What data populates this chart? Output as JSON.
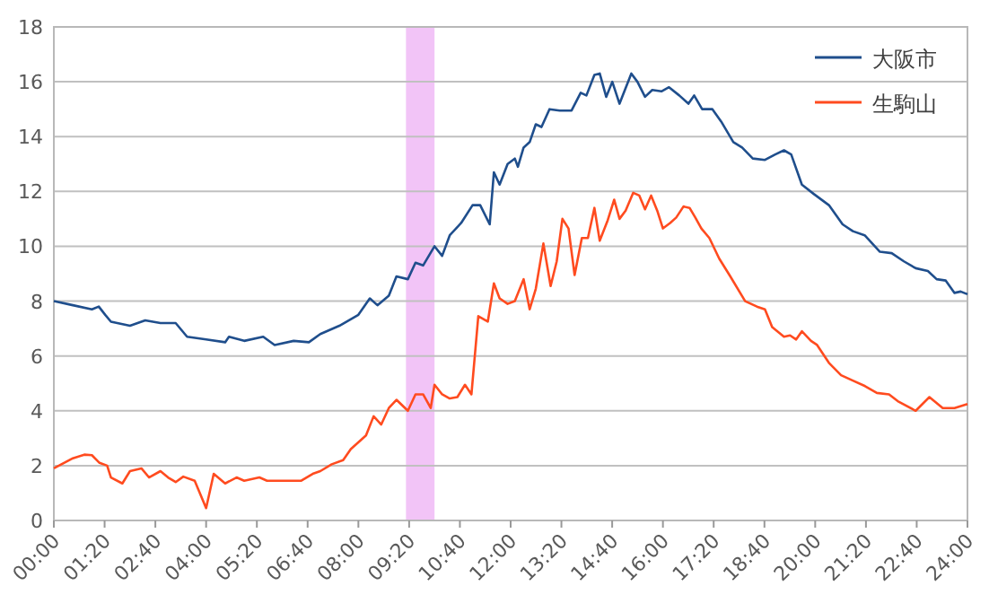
{
  "chart_data": {
    "type": "line",
    "legend": "top right",
    "grid": "y",
    "xlim": [
      0,
      24
    ],
    "ylim": [
      0,
      18
    ],
    "yticks": [
      0,
      2,
      4,
      6,
      8,
      10,
      12,
      14,
      16,
      18
    ],
    "xticks": [
      {
        "value": 0,
        "label": "00:00"
      },
      {
        "value": 1.3333,
        "label": "01:20"
      },
      {
        "value": 2.6667,
        "label": "02:40"
      },
      {
        "value": 4,
        "label": "04:00"
      },
      {
        "value": 5.3333,
        "label": "05:20"
      },
      {
        "value": 6.6667,
        "label": "06:40"
      },
      {
        "value": 8,
        "label": "08:00"
      },
      {
        "value": 9.3333,
        "label": "09:20"
      },
      {
        "value": 10.6667,
        "label": "10:40"
      },
      {
        "value": 12,
        "label": "12:00"
      },
      {
        "value": 13.3333,
        "label": "13:20"
      },
      {
        "value": 14.6667,
        "label": "14:40"
      },
      {
        "value": 16,
        "label": "16:00"
      },
      {
        "value": 17.3333,
        "label": "17:20"
      },
      {
        "value": 18.6667,
        "label": "18:40"
      },
      {
        "value": 20,
        "label": "20:00"
      },
      {
        "value": 21.3333,
        "label": "21:20"
      },
      {
        "value": 22.6667,
        "label": "22:40"
      },
      {
        "value": 24,
        "label": "24:00"
      }
    ],
    "bands": [
      {
        "axis": "x",
        "from": 9.25,
        "to": 10,
        "color": "#f2c4f7"
      }
    ],
    "series": [
      {
        "name": "大阪市",
        "color": "#1f4e8c",
        "x": [
          0,
          0.5,
          1,
          1.18,
          1.35,
          1.5,
          2,
          2.4,
          2.8,
          3.2,
          3.5,
          4,
          4.5,
          4.6,
          5,
          5.5,
          5.8,
          6.3,
          6.7,
          7,
          7.5,
          8,
          8.3,
          8.5,
          8.8,
          9,
          9.3,
          9.5,
          9.7,
          10,
          10.2,
          10.4,
          10.7,
          11,
          11.2,
          11.45,
          11.56,
          11.71,
          11.92,
          12.11,
          12.19,
          12.34,
          12.5,
          12.66,
          12.81,
          13.02,
          13.29,
          13.6,
          13.84,
          13.99,
          14.2,
          14.34,
          14.51,
          14.67,
          14.86,
          15.17,
          15.33,
          15.53,
          15.72,
          15.96,
          16.16,
          16.43,
          16.67,
          16.82,
          17.03,
          17.3,
          17.53,
          17.85,
          18.08,
          18.36,
          18.68,
          18.95,
          19.18,
          19.37,
          19.65,
          19.97,
          20.36,
          20.72,
          20.99,
          21.3,
          21.7,
          22.01,
          22.33,
          22.64,
          22.96,
          23.19,
          23.43,
          23.66,
          23.82,
          24
        ],
        "values": [
          8.0,
          7.85,
          7.7,
          7.8,
          7.5,
          7.25,
          7.1,
          7.3,
          7.2,
          7.2,
          6.7,
          6.6,
          6.5,
          6.7,
          6.55,
          6.7,
          6.4,
          6.55,
          6.5,
          6.8,
          7.1,
          7.5,
          8.1,
          7.85,
          8.2,
          8.9,
          8.8,
          9.4,
          9.3,
          10.0,
          9.65,
          10.4,
          10.85,
          11.5,
          11.5,
          10.8,
          12.7,
          12.25,
          13.0,
          13.2,
          12.9,
          13.6,
          13.8,
          14.45,
          14.35,
          15.0,
          14.95,
          14.95,
          15.6,
          15.5,
          16.25,
          16.3,
          15.45,
          16.0,
          15.2,
          16.3,
          16.0,
          15.45,
          15.7,
          15.65,
          15.8,
          15.5,
          15.2,
          15.5,
          15.0,
          15.0,
          14.55,
          13.8,
          13.6,
          13.2,
          13.15,
          13.35,
          13.5,
          13.35,
          12.25,
          11.9,
          11.5,
          10.8,
          10.55,
          10.4,
          9.8,
          9.75,
          9.45,
          9.2,
          9.1,
          8.8,
          8.75,
          8.3,
          8.35,
          8.25
        ]
      },
      {
        "name": "生駒山",
        "color": "#ff4b1f",
        "x": [
          0,
          0.5,
          0.8,
          1,
          1.2,
          1.4,
          1.5,
          1.8,
          2,
          2.3,
          2.5,
          2.8,
          3,
          3.2,
          3.4,
          3.7,
          4,
          4.2,
          4.5,
          4.8,
          5,
          5.4,
          5.6,
          6,
          6.5,
          6.8,
          7,
          7.3,
          7.6,
          7.8,
          8.2,
          8.4,
          8.6,
          8.8,
          9,
          9.3,
          9.5,
          9.7,
          9.9,
          10,
          10.2,
          10.4,
          10.6,
          10.8,
          10.97,
          11.15,
          11.4,
          11.56,
          11.71,
          11.92,
          12.11,
          12.34,
          12.5,
          12.66,
          12.86,
          13.05,
          13.21,
          13.36,
          13.52,
          13.68,
          13.87,
          14.03,
          14.2,
          14.34,
          14.55,
          14.72,
          14.86,
          15.02,
          15.22,
          15.38,
          15.53,
          15.69,
          15.85,
          16.0,
          16.19,
          16.35,
          16.54,
          16.7,
          16.85,
          17.01,
          17.22,
          17.48,
          17.77,
          18.16,
          18.47,
          18.68,
          18.87,
          19.18,
          19.34,
          19.5,
          19.65,
          19.89,
          20.05,
          20.36,
          20.68,
          20.99,
          21.31,
          21.62,
          21.94,
          22.17,
          22.64,
          23.0,
          23.35,
          23.66,
          24
        ],
        "values": [
          1.9,
          2.27,
          2.4,
          2.38,
          2.1,
          2.0,
          1.57,
          1.35,
          1.8,
          1.9,
          1.57,
          1.8,
          1.57,
          1.4,
          1.6,
          1.45,
          0.45,
          1.7,
          1.35,
          1.57,
          1.45,
          1.57,
          1.45,
          1.45,
          1.45,
          1.7,
          1.8,
          2.05,
          2.2,
          2.6,
          3.1,
          3.8,
          3.5,
          4.1,
          4.4,
          4.0,
          4.6,
          4.6,
          4.1,
          4.95,
          4.6,
          4.45,
          4.5,
          4.95,
          4.6,
          7.45,
          7.25,
          8.65,
          8.1,
          7.9,
          8.0,
          8.8,
          7.7,
          8.45,
          10.1,
          8.55,
          9.45,
          11.0,
          10.65,
          8.95,
          10.3,
          10.3,
          11.4,
          10.2,
          10.95,
          11.7,
          11.0,
          11.3,
          11.95,
          11.85,
          11.35,
          11.85,
          11.3,
          10.65,
          10.85,
          11.05,
          11.45,
          11.4,
          11.05,
          10.65,
          10.3,
          9.55,
          8.9,
          8.0,
          7.8,
          7.7,
          7.05,
          6.7,
          6.75,
          6.6,
          6.9,
          6.55,
          6.4,
          5.75,
          5.3,
          5.1,
          4.9,
          4.65,
          4.6,
          4.35,
          4.0,
          4.5,
          4.1,
          4.1,
          4.25
        ]
      }
    ]
  }
}
